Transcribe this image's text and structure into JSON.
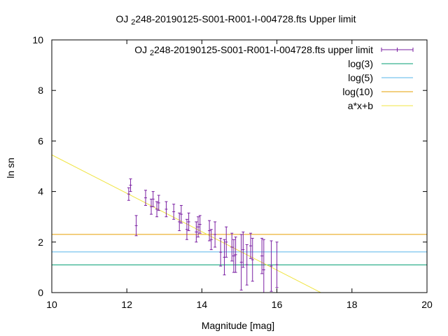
{
  "chart_data": {
    "type": "scatter",
    "title": "OJ 248-20190125-S001-R001-I-004728.fts Upper limit",
    "xlabel": "Magnitude [mag]",
    "ylabel": "ln sn",
    "xlim": [
      10,
      20
    ],
    "ylim": [
      0,
      10
    ],
    "xticks": [
      10,
      12,
      14,
      16,
      18,
      20
    ],
    "yticks": [
      0,
      2,
      4,
      6,
      8,
      10
    ],
    "legend_position": "top-right",
    "grid": false,
    "series": [
      {
        "name": "OJ 248-20190125-S001-R001-I-004728.fts upper limit",
        "kind": "errorbars",
        "color": "#7a1fa2",
        "points": [
          {
            "x": 12.05,
            "y": 3.9,
            "err": 0.25
          },
          {
            "x": 12.1,
            "y": 4.25,
            "err": 0.25
          },
          {
            "x": 12.25,
            "y": 2.65,
            "err": 0.4
          },
          {
            "x": 12.5,
            "y": 3.75,
            "err": 0.3
          },
          {
            "x": 12.65,
            "y": 3.4,
            "err": 0.3
          },
          {
            "x": 12.7,
            "y": 3.7,
            "err": 0.3
          },
          {
            "x": 12.8,
            "y": 3.3,
            "err": 0.3
          },
          {
            "x": 12.85,
            "y": 3.55,
            "err": 0.3
          },
          {
            "x": 13.05,
            "y": 3.3,
            "err": 0.3
          },
          {
            "x": 13.25,
            "y": 3.2,
            "err": 0.3
          },
          {
            "x": 13.4,
            "y": 2.8,
            "err": 0.35
          },
          {
            "x": 13.45,
            "y": 3.1,
            "err": 0.35
          },
          {
            "x": 13.6,
            "y": 2.5,
            "err": 0.4
          },
          {
            "x": 13.65,
            "y": 2.8,
            "err": 0.35
          },
          {
            "x": 13.85,
            "y": 2.4,
            "err": 0.4
          },
          {
            "x": 13.9,
            "y": 2.6,
            "err": 0.4
          },
          {
            "x": 13.95,
            "y": 2.7,
            "err": 0.35
          },
          {
            "x": 14.2,
            "y": 2.45,
            "err": 0.4
          },
          {
            "x": 14.25,
            "y": 2.1,
            "err": 0.4
          },
          {
            "x": 14.35,
            "y": 2.3,
            "err": 0.5
          },
          {
            "x": 14.5,
            "y": 1.6,
            "err": 0.55
          },
          {
            "x": 14.6,
            "y": 1.4,
            "err": 0.7
          },
          {
            "x": 14.65,
            "y": 2.0,
            "err": 0.6
          },
          {
            "x": 14.8,
            "y": 1.8,
            "err": 0.55
          },
          {
            "x": 14.85,
            "y": 1.45,
            "err": 0.65
          },
          {
            "x": 14.9,
            "y": 1.5,
            "err": 0.7
          },
          {
            "x": 15.05,
            "y": 1.2,
            "err": 1.1
          },
          {
            "x": 15.1,
            "y": 1.7,
            "err": 0.7
          },
          {
            "x": 15.2,
            "y": 1.1,
            "err": 0.8
          },
          {
            "x": 15.3,
            "y": 1.85,
            "err": 0.5
          },
          {
            "x": 15.35,
            "y": 1.3,
            "err": 0.85
          },
          {
            "x": 15.6,
            "y": 1.45,
            "err": 0.7
          },
          {
            "x": 15.65,
            "y": 0.9,
            "err": 1.2
          },
          {
            "x": 15.85,
            "y": 1.05,
            "err": 1.0
          },
          {
            "x": 16.0,
            "y": 1.1,
            "err": 0.9
          }
        ]
      },
      {
        "name": "log(3)",
        "kind": "hline",
        "color": "#009e73",
        "y": 1.0986
      },
      {
        "name": "log(5)",
        "kind": "hline",
        "color": "#56b4e9",
        "y": 1.6094
      },
      {
        "name": "log(10)",
        "kind": "hline",
        "color": "#e69f00",
        "y": 2.3026
      },
      {
        "name": "a*x+b",
        "kind": "fitline",
        "color": "#f0e442",
        "a": -0.76,
        "b": 13.05
      }
    ]
  }
}
